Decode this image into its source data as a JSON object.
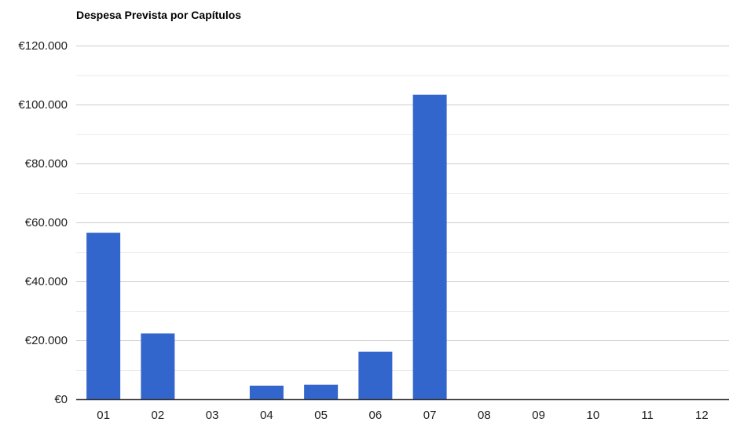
{
  "chart_data": {
    "type": "bar",
    "title": "Despesa Prevista por Capítulos",
    "xlabel": "",
    "ylabel": "",
    "categories": [
      "01",
      "02",
      "03",
      "04",
      "05",
      "06",
      "07",
      "08",
      "09",
      "10",
      "11",
      "12"
    ],
    "values": [
      56500,
      22300,
      0,
      4600,
      4900,
      16100,
      103300,
      0,
      0,
      0,
      0,
      0
    ],
    "ylim": [
      0,
      120000
    ],
    "y_ticks": [
      0,
      20000,
      40000,
      60000,
      80000,
      100000,
      120000
    ],
    "y_tick_labels": [
      "€0",
      "€20.000",
      "€40.000",
      "€60.000",
      "€80.000",
      "€100.000",
      "€120.000"
    ],
    "grid": true,
    "bar_color": "#3366cc",
    "gridline_color": "#cccccc",
    "minor_gridline_color": "#ebebeb",
    "axis_color": "#333333"
  }
}
